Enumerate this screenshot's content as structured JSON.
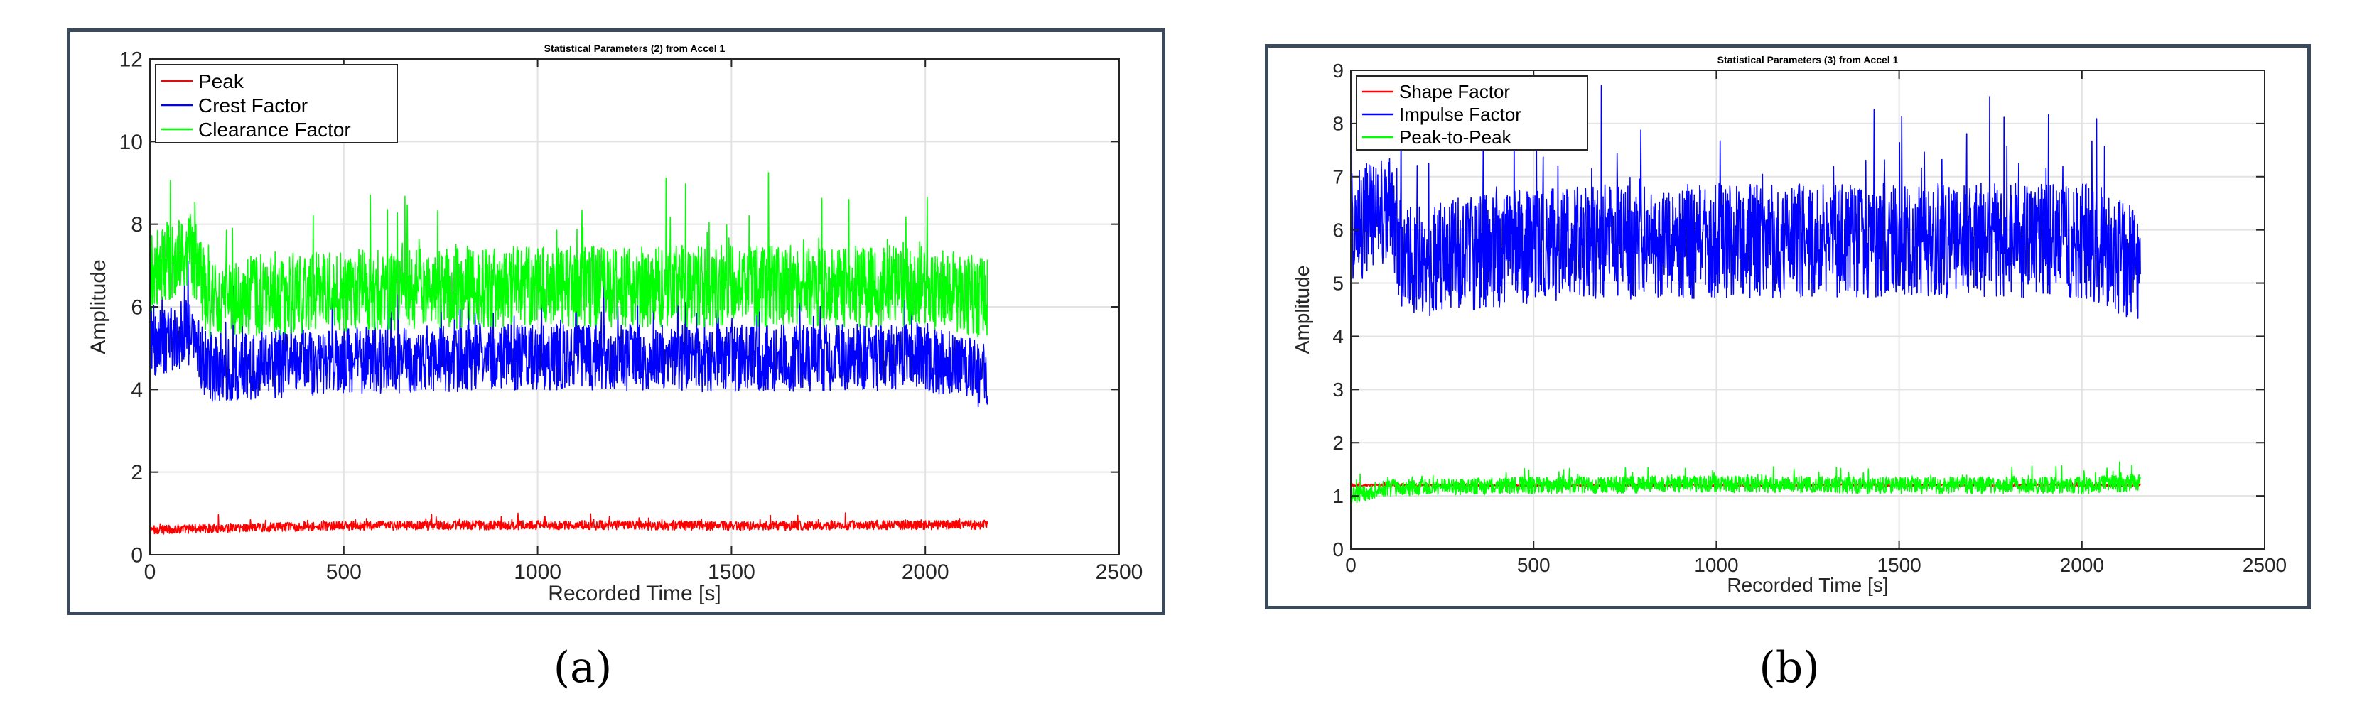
{
  "chart_data": [
    {
      "type": "line",
      "title": "Statistical Parameters (2) from Accel 1",
      "xlabel": "Recorded Time [s]",
      "ylabel": "Amplitude",
      "xlim": [
        0,
        2500
      ],
      "ylim": [
        0,
        12
      ],
      "xticks": [
        0,
        500,
        1000,
        1500,
        2000,
        2500
      ],
      "yticks": [
        0,
        2,
        4,
        6,
        8,
        10,
        12
      ],
      "grid": true,
      "legend_position": "top-left",
      "x_range_of_data": [
        0,
        2160
      ],
      "series": [
        {
          "name": "Peak",
          "color": "#ff0000",
          "baseline": 0.7,
          "amplitude": 0.25,
          "x": [
            0,
            200,
            500,
            1000,
            1500,
            2000,
            2160
          ],
          "values": [
            0.6,
            0.65,
            0.7,
            0.72,
            0.7,
            0.72,
            0.72
          ]
        },
        {
          "name": "Crest Factor",
          "color": "#0000ff",
          "baseline": 4.7,
          "amplitude": 1.8,
          "x": [
            0,
            100,
            150,
            500,
            1000,
            1500,
            2000,
            2160
          ],
          "values": [
            5.0,
            5.4,
            4.5,
            4.7,
            4.8,
            4.75,
            4.8,
            4.3
          ]
        },
        {
          "name": "Clearance Factor",
          "color": "#00ff00",
          "baseline": 6.4,
          "amplitude": 2.2,
          "x": [
            0,
            100,
            150,
            500,
            1000,
            1500,
            2000,
            2160
          ],
          "values": [
            6.8,
            7.5,
            6.2,
            6.4,
            6.5,
            6.5,
            6.5,
            6.2
          ]
        }
      ]
    },
    {
      "type": "line",
      "title": "Statistical Parameters (3) from Accel 1",
      "xlabel": "Recorded Time [s]",
      "ylabel": "Amplitude",
      "xlim": [
        0,
        2500
      ],
      "ylim": [
        0,
        9
      ],
      "xticks": [
        0,
        500,
        1000,
        1500,
        2000,
        2500
      ],
      "yticks": [
        0,
        1,
        2,
        3,
        4,
        5,
        6,
        7,
        8,
        9
      ],
      "grid": true,
      "legend_position": "top-left",
      "x_range_of_data": [
        0,
        2160
      ],
      "series": [
        {
          "name": "Shape Factor",
          "color": "#ff0000",
          "baseline": 1.2,
          "amplitude": 0.05,
          "x": [
            0,
            2160
          ],
          "values": [
            1.2,
            1.2
          ]
        },
        {
          "name": "Impulse Factor",
          "color": "#0000ff",
          "baseline": 5.7,
          "amplitude": 2.4,
          "x": [
            0,
            100,
            150,
            500,
            1000,
            1500,
            2000,
            2160
          ],
          "values": [
            6.0,
            6.5,
            5.4,
            5.7,
            5.8,
            5.8,
            5.8,
            5.3
          ]
        },
        {
          "name": "Peak-to-Peak",
          "color": "#00ff00",
          "baseline": 1.2,
          "amplitude": 0.35,
          "x": [
            0,
            100,
            500,
            1000,
            1500,
            2000,
            2160
          ],
          "values": [
            1.0,
            1.15,
            1.2,
            1.22,
            1.2,
            1.2,
            1.25
          ]
        }
      ]
    }
  ],
  "captions": {
    "a": "(a)",
    "b": "(b)"
  }
}
